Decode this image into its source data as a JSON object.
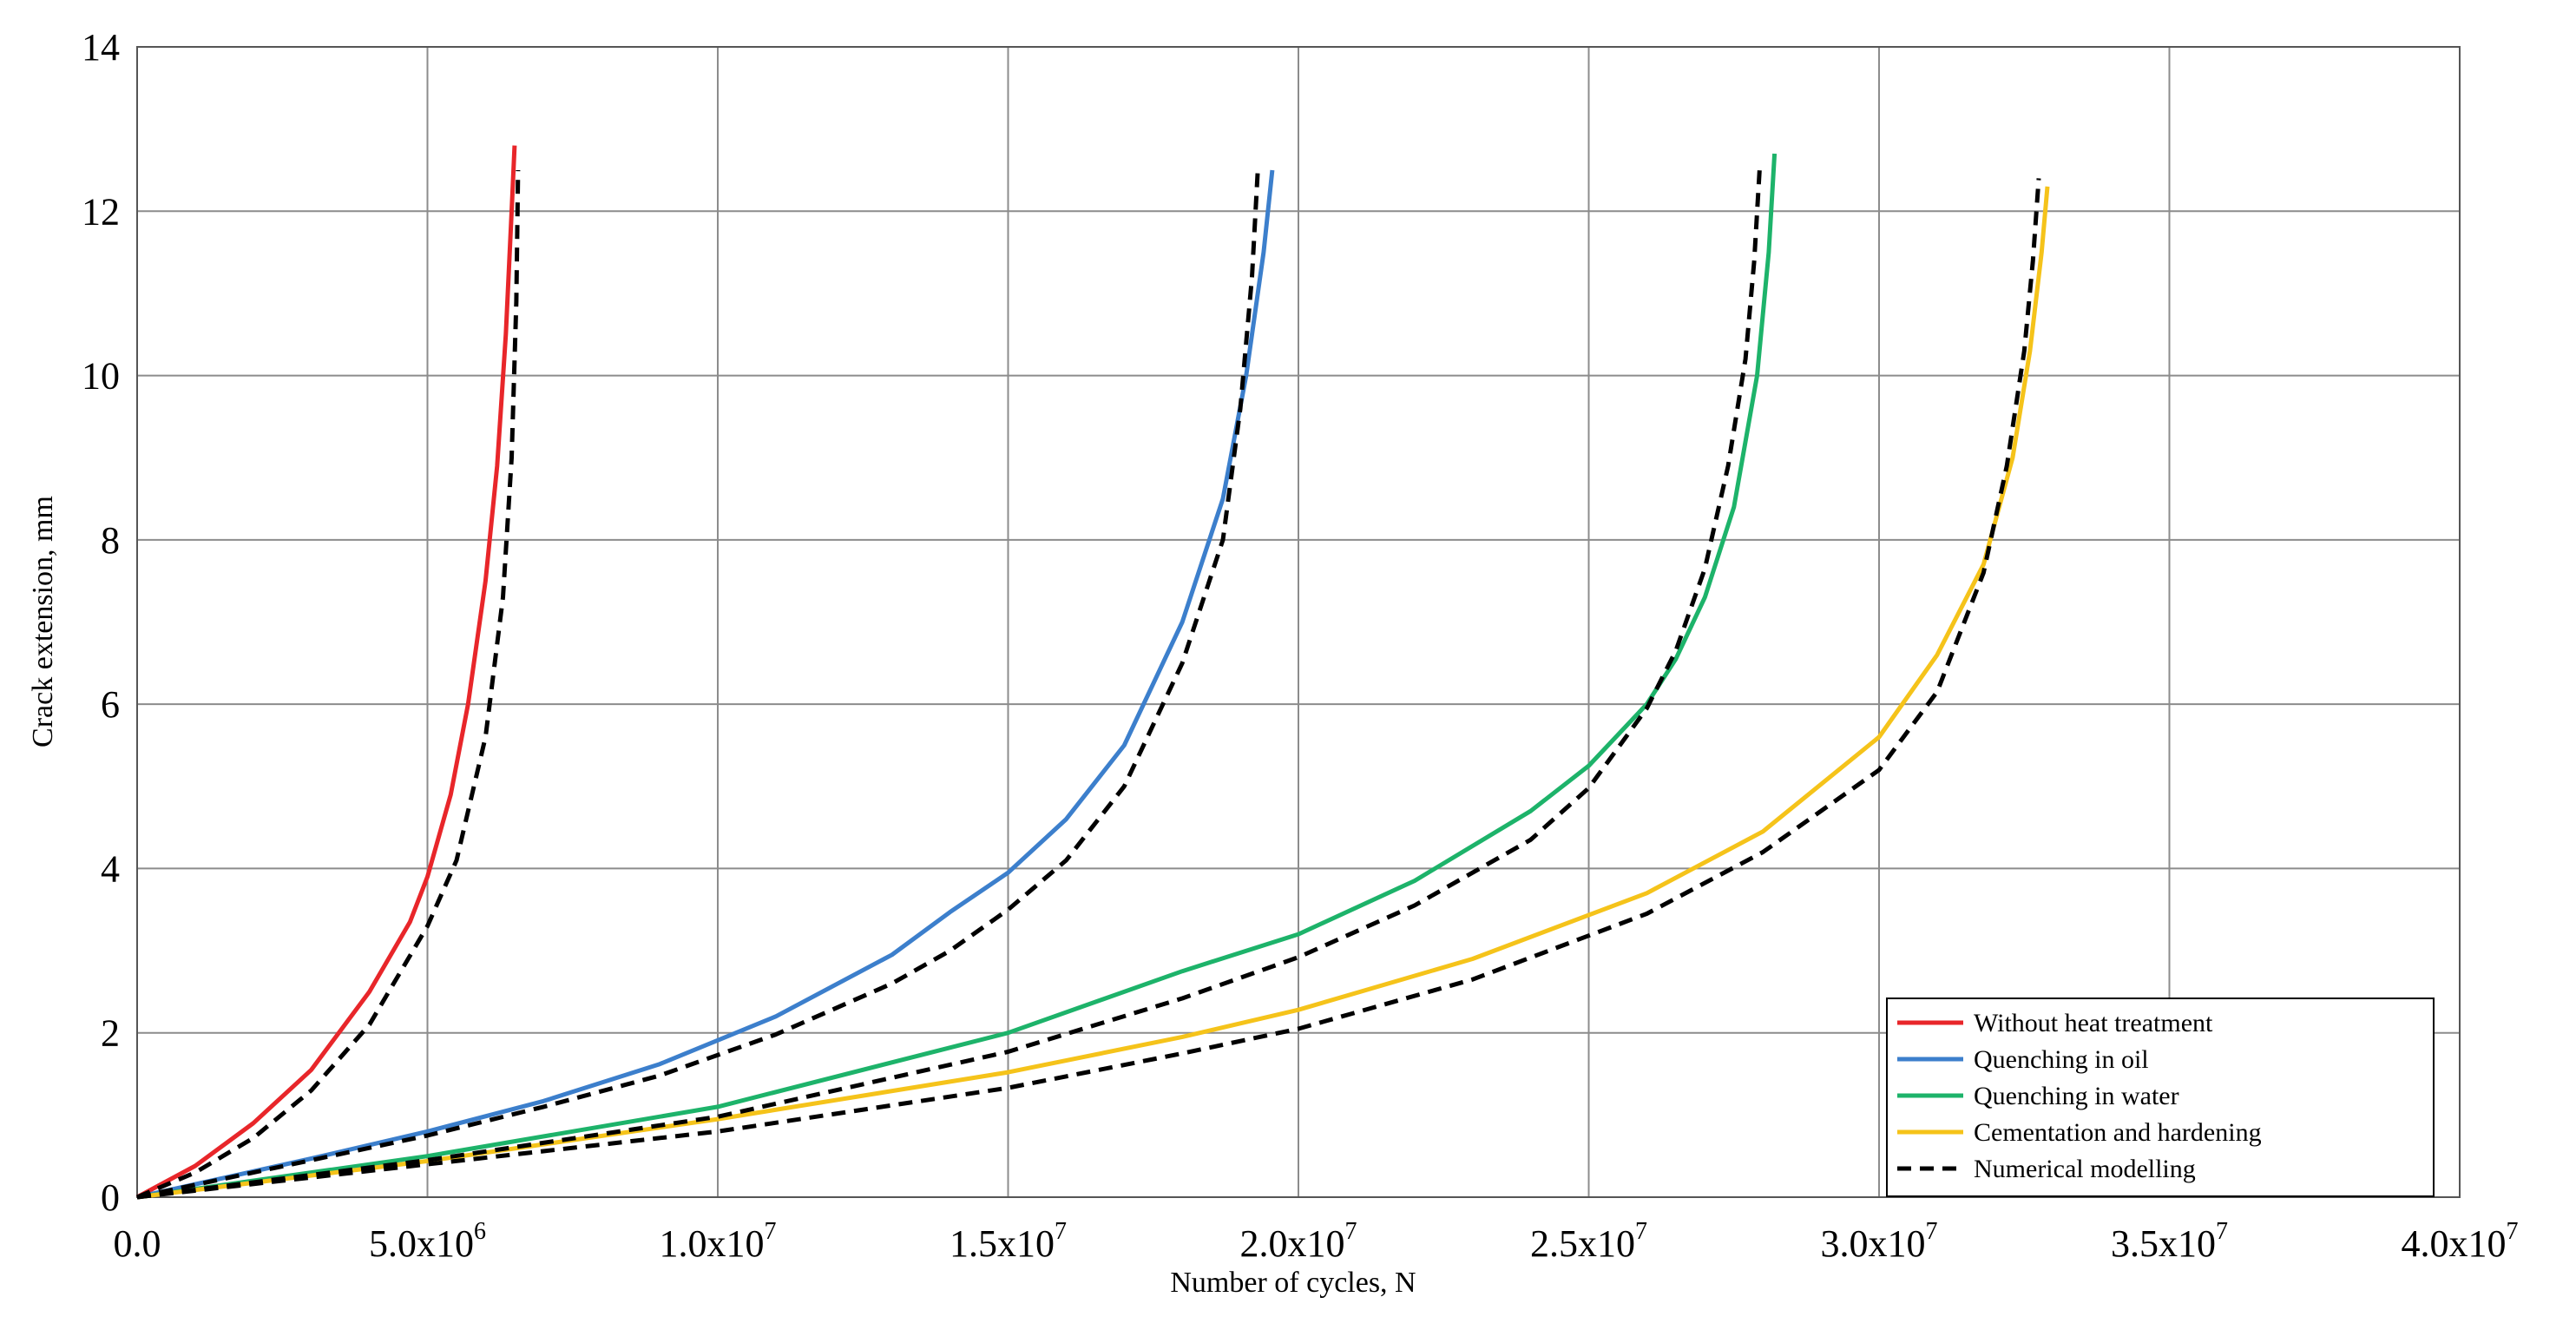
{
  "chart_data": {
    "type": "line",
    "xlabel": "Number of cycles, N",
    "ylabel": "Crack extension, mm",
    "xlim": [
      0,
      40000000
    ],
    "ylim": [
      0,
      14
    ],
    "grid": true,
    "legend_position": "bottom-right",
    "x_ticks": [
      {
        "value": 0,
        "mant": "0.0",
        "exp": ""
      },
      {
        "value": 5000000,
        "mant": "5.0x10",
        "exp": "6"
      },
      {
        "value": 10000000,
        "mant": "1.0x10",
        "exp": "7"
      },
      {
        "value": 15000000,
        "mant": "1.5x10",
        "exp": "7"
      },
      {
        "value": 20000000,
        "mant": "2.0x10",
        "exp": "7"
      },
      {
        "value": 25000000,
        "mant": "2.5x10",
        "exp": "7"
      },
      {
        "value": 30000000,
        "mant": "3.0x10",
        "exp": "7"
      },
      {
        "value": 35000000,
        "mant": "3.5x10",
        "exp": "7"
      },
      {
        "value": 40000000,
        "mant": "4.0x10",
        "exp": "7"
      }
    ],
    "y_ticks": [
      0,
      2,
      4,
      6,
      8,
      10,
      12,
      14
    ],
    "series": [
      {
        "name": "Without heat treatment",
        "color": "#e8262a",
        "dash": false,
        "x": [
          0,
          1000000,
          2000000,
          3000000,
          4000000,
          4700000,
          5000000,
          5400000,
          5700000,
          6000000,
          6200000,
          6350000,
          6450000,
          6500000
        ],
        "y": [
          0,
          0.38,
          0.9,
          1.55,
          2.5,
          3.35,
          3.9,
          4.9,
          6.0,
          7.5,
          8.9,
          10.5,
          12.0,
          12.8
        ]
      },
      {
        "name": "Quenching in oil",
        "color": "#3c7fcc",
        "dash": false,
        "x": [
          0,
          3000000,
          5000000,
          7000000,
          9000000,
          11000000,
          13000000,
          14000000,
          15000000,
          16000000,
          17000000,
          18000000,
          18700000,
          19100000,
          19400000,
          19550000
        ],
        "y": [
          0,
          0.47,
          0.8,
          1.17,
          1.62,
          2.2,
          2.95,
          3.47,
          3.95,
          4.6,
          5.5,
          7.0,
          8.5,
          10.0,
          11.5,
          12.5
        ]
      },
      {
        "name": "Quenching in water",
        "color": "#1db36a",
        "dash": false,
        "x": [
          0,
          5000000,
          10000000,
          15000000,
          18000000,
          20000000,
          22000000,
          24000000,
          25000000,
          26000000,
          26500000,
          27000000,
          27500000,
          27900000,
          28100000,
          28200000
        ],
        "y": [
          0,
          0.5,
          1.1,
          2.0,
          2.75,
          3.2,
          3.85,
          4.7,
          5.25,
          6.0,
          6.55,
          7.3,
          8.4,
          10.0,
          11.5,
          12.7
        ]
      },
      {
        "name": "Cementation and hardening",
        "color": "#f5c31a",
        "dash": false,
        "x": [
          0,
          5000000,
          10000000,
          15000000,
          18000000,
          20000000,
          23000000,
          26000000,
          28000000,
          30000000,
          31000000,
          31800000,
          32300000,
          32600000,
          32800000,
          32900000
        ],
        "y": [
          0,
          0.44,
          0.95,
          1.52,
          1.95,
          2.28,
          2.9,
          3.7,
          4.45,
          5.6,
          6.6,
          7.7,
          9.0,
          10.3,
          11.5,
          12.3
        ]
      },
      {
        "name": "Numerical modelling",
        "color": "#000000",
        "dash": true,
        "x": [
          0,
          1000000,
          2000000,
          3000000,
          4000000,
          5000000,
          5500000,
          6000000,
          6300000,
          6450000,
          6530000,
          6560000
        ],
        "y": [
          0,
          0.3,
          0.72,
          1.3,
          2.1,
          3.3,
          4.1,
          5.6,
          7.3,
          9.0,
          10.9,
          12.5
        ]
      },
      {
        "name": "",
        "color": "#000000",
        "dash": true,
        "x": [
          0,
          3000000,
          5000000,
          7000000,
          9000000,
          11000000,
          13000000,
          14000000,
          15000000,
          16000000,
          17000000,
          18000000,
          18700000,
          19000000,
          19200000,
          19300000
        ],
        "y": [
          0,
          0.45,
          0.75,
          1.1,
          1.48,
          1.98,
          2.6,
          3.0,
          3.5,
          4.1,
          5.0,
          6.5,
          8.0,
          9.6,
          11.2,
          12.5
        ]
      },
      {
        "name": "",
        "color": "#000000",
        "dash": true,
        "x": [
          0,
          5000000,
          10000000,
          15000000,
          18000000,
          20000000,
          22000000,
          24000000,
          25000000,
          26000000,
          26500000,
          27000000,
          27400000,
          27700000,
          27850000,
          27950000
        ],
        "y": [
          0,
          0.45,
          0.98,
          1.77,
          2.42,
          2.92,
          3.55,
          4.35,
          4.98,
          5.95,
          6.65,
          7.65,
          8.9,
          10.2,
          11.4,
          12.6
        ]
      },
      {
        "name": "",
        "color": "#000000",
        "dash": true,
        "x": [
          0,
          5000000,
          10000000,
          15000000,
          18000000,
          20000000,
          23000000,
          26000000,
          28000000,
          30000000,
          31000000,
          31800000,
          32200000,
          32500000,
          32650000,
          32750000
        ],
        "y": [
          0,
          0.4,
          0.8,
          1.33,
          1.75,
          2.05,
          2.65,
          3.45,
          4.2,
          5.2,
          6.15,
          7.6,
          8.9,
          10.3,
          11.4,
          12.4
        ]
      }
    ]
  }
}
